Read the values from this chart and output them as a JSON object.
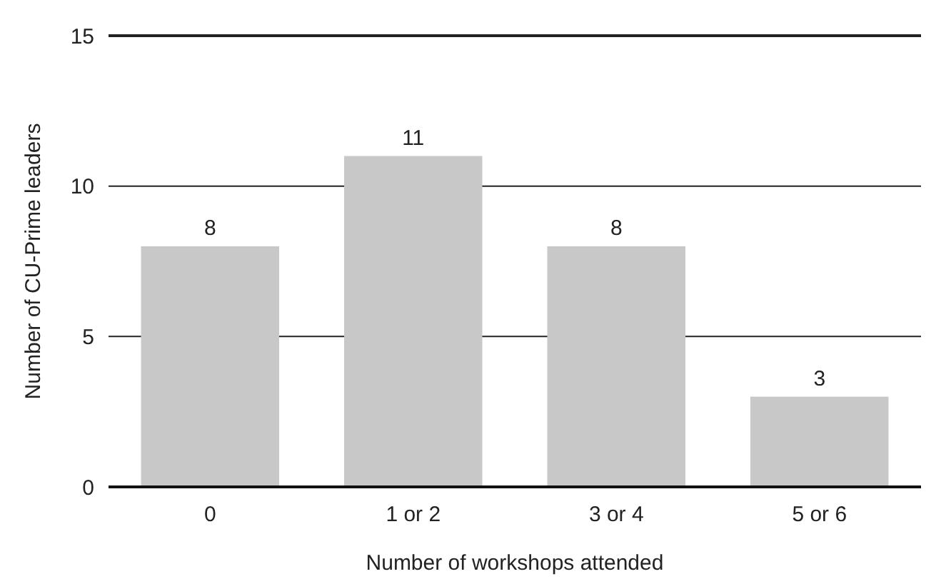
{
  "chart_data": {
    "type": "bar",
    "xlabel": "Number of workshops attended",
    "ylabel": "Number of CU-Prime leaders",
    "categories": [
      "0",
      "1 or 2",
      "3 or 4",
      "5 or 6"
    ],
    "values": [
      8,
      11,
      8,
      3
    ],
    "color": "#c8c8c8",
    "ylim": [
      0,
      15
    ],
    "yticks": [
      0,
      5,
      10,
      15
    ],
    "grid": "y",
    "data_labels": true
  }
}
